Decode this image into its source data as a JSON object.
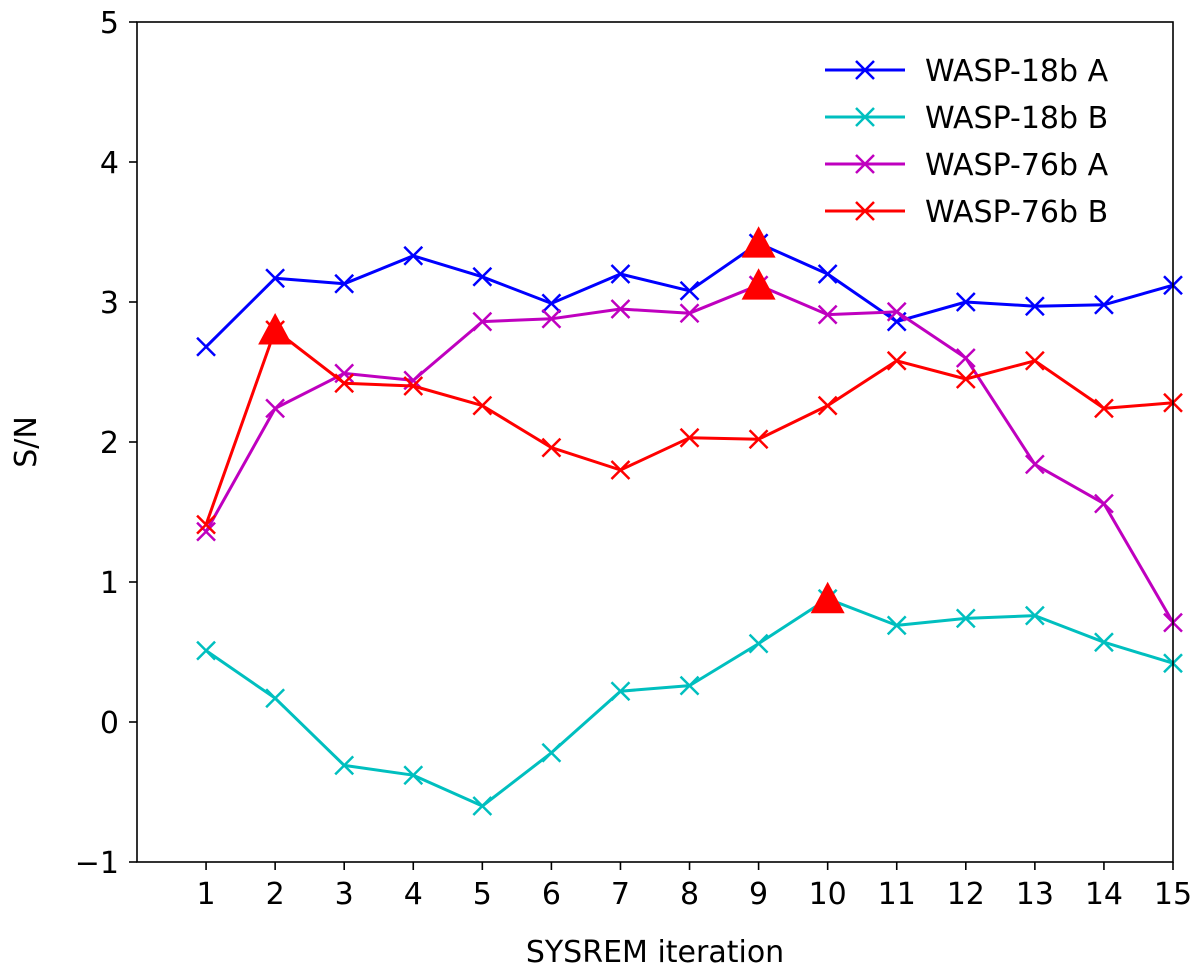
{
  "chart_data": {
    "type": "line",
    "title": "",
    "xlabel": "SYSREM iteration",
    "ylabel": "S/N",
    "x": [
      1,
      2,
      3,
      4,
      5,
      6,
      7,
      8,
      9,
      10,
      11,
      12,
      13,
      14,
      15
    ],
    "xlim": [
      0,
      15
    ],
    "ylim": [
      -1,
      5
    ],
    "x_ticks": [
      "1",
      "2",
      "3",
      "4",
      "5",
      "6",
      "7",
      "8",
      "9",
      "10",
      "11",
      "12",
      "13",
      "14",
      "15"
    ],
    "y_ticks": [
      "−1",
      "0",
      "1",
      "2",
      "3",
      "4",
      "5"
    ],
    "grid": false,
    "legend_position": "top-right",
    "series": [
      {
        "name": "WASP-18b A",
        "color": "#0000ff",
        "marker": "x",
        "values": [
          2.68,
          3.17,
          3.13,
          3.33,
          3.18,
          2.99,
          3.2,
          3.08,
          3.42,
          3.2,
          2.86,
          3.0,
          2.97,
          2.98,
          3.12
        ]
      },
      {
        "name": "WASP-18b B",
        "color": "#00bfbf",
        "marker": "x",
        "values": [
          0.51,
          0.17,
          -0.31,
          -0.38,
          -0.6,
          -0.22,
          0.22,
          0.26,
          0.56,
          0.88,
          0.69,
          0.74,
          0.76,
          0.57,
          0.42
        ]
      },
      {
        "name": "WASP-76b A",
        "color": "#bf00bf",
        "marker": "x",
        "values": [
          1.36,
          2.24,
          2.49,
          2.44,
          2.86,
          2.88,
          2.95,
          2.92,
          3.12,
          2.91,
          2.93,
          2.6,
          1.84,
          1.56,
          0.71
        ]
      },
      {
        "name": "WASP-76b B",
        "color": "#ff0000",
        "marker": "x",
        "values": [
          1.41,
          2.8,
          2.42,
          2.4,
          2.26,
          1.96,
          1.8,
          2.03,
          2.02,
          2.26,
          2.58,
          2.45,
          2.58,
          2.24,
          2.28
        ]
      }
    ],
    "highlights": [
      {
        "series": "WASP-18b A",
        "x": 9,
        "y": 3.42,
        "marker": "triangle",
        "color": "#ff0000"
      },
      {
        "series": "WASP-18b B",
        "x": 10,
        "y": 0.88,
        "marker": "triangle",
        "color": "#ff0000"
      },
      {
        "series": "WASP-76b A",
        "x": 9,
        "y": 3.12,
        "marker": "triangle",
        "color": "#ff0000"
      },
      {
        "series": "WASP-76b B",
        "x": 2,
        "y": 2.8,
        "marker": "triangle",
        "color": "#ff0000"
      }
    ]
  }
}
